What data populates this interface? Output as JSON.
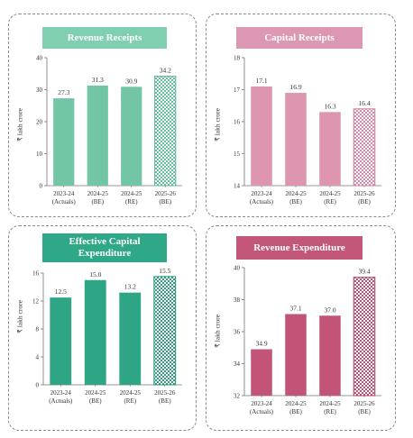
{
  "chart_data": [
    {
      "type": "bar",
      "title": "Revenue Receipts",
      "ylabel": "₹ lakh crore",
      "categories": [
        [
          "2023-24",
          "(Actuals)"
        ],
        [
          "2024-25",
          "(BE)"
        ],
        [
          "2024-25",
          "(RE)"
        ],
        [
          "2025-26",
          "(BE)"
        ]
      ],
      "values": [
        27.3,
        31.3,
        30.9,
        34.2
      ],
      "ylim": [
        0,
        40
      ],
      "yticks": [
        0,
        10,
        20,
        30,
        40
      ],
      "value_labels": [
        "27.3",
        "31.3",
        "30.9",
        "34.2"
      ],
      "colors": {
        "title_bg": "#7fcfb0",
        "bar": "#72c6a6",
        "highlight": "#58b894"
      },
      "patterned_last": true
    },
    {
      "type": "bar",
      "title": "Capital Receipts",
      "ylabel": "₹ lakh crore",
      "categories": [
        [
          "2023-24",
          "(Actuals)"
        ],
        [
          "2024-25",
          "(BE)"
        ],
        [
          "2024-25",
          "(RE)"
        ],
        [
          "2025-26",
          "(BE)"
        ]
      ],
      "values": [
        17.1,
        16.9,
        16.3,
        16.4
      ],
      "ylim": [
        14,
        18
      ],
      "yticks": [
        14,
        15,
        16,
        17,
        18
      ],
      "value_labels": [
        "17.1",
        "16.9",
        "16.3",
        "16.4"
      ],
      "colors": {
        "title_bg": "#dc98b2",
        "bar": "#dd95b0",
        "highlight": "#cf7d9e"
      },
      "patterned_last": true
    },
    {
      "type": "bar",
      "title": "Effective Capital Expenditure",
      "ylabel": "₹ lakh crore",
      "categories": [
        [
          "2023-24",
          "(Actuals)"
        ],
        [
          "2024-25",
          "(BE)"
        ],
        [
          "2024-25",
          "(RE)"
        ],
        [
          "2025-26",
          "(BE)"
        ]
      ],
      "values": [
        12.5,
        15.0,
        13.2,
        15.5
      ],
      "ylim": [
        0,
        16
      ],
      "yticks": [
        0,
        4,
        8,
        12,
        16
      ],
      "value_labels": [
        "12.5",
        "15.0",
        "13.2",
        "15.5"
      ],
      "colors": {
        "title_bg": "#2fa888",
        "bar": "#2ea685",
        "highlight": "#239274"
      },
      "patterned_last": true
    },
    {
      "type": "bar",
      "title": "Revenue Expenditure",
      "ylabel": "₹ lakh crore",
      "categories": [
        [
          "2023-24",
          "(Actuals)"
        ],
        [
          "2024-25",
          "(BE)"
        ],
        [
          "2024-25",
          "(RE)"
        ],
        [
          "2025-26",
          "(BE)"
        ]
      ],
      "values": [
        34.9,
        37.1,
        37.0,
        39.4
      ],
      "ylim": [
        32,
        40
      ],
      "yticks": [
        32,
        34,
        36,
        38,
        40
      ],
      "value_labels": [
        "34.9",
        "37.1",
        "37.0",
        "39.4"
      ],
      "colors": {
        "title_bg": "#c2577a",
        "bar": "#c25478",
        "highlight": "#ad4266"
      },
      "patterned_last": true
    }
  ]
}
